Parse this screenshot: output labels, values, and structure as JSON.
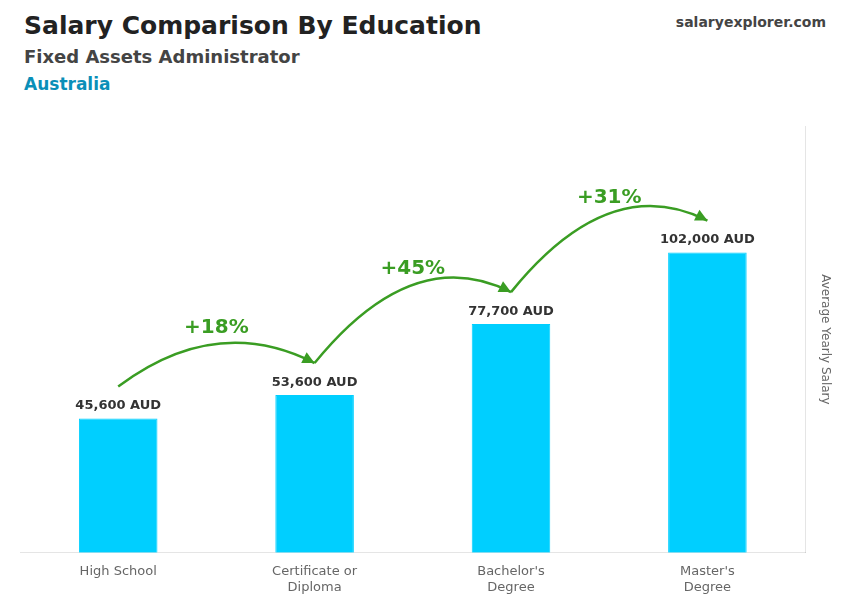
{
  "chart_data": {
    "type": "bar",
    "title": "Salary Comparison By Education",
    "subtitle": "Fixed Assets Administrator",
    "y_label": "Average Yearly Salary",
    "categories": [
      "High School",
      "Certificate or\nDiploma",
      "Bachelor's\nDegree",
      "Master's\nDegree"
    ],
    "values": [
      45600,
      53600,
      77700,
      102000
    ],
    "value_labels": [
      "45,600 AUD",
      "53,600 AUD",
      "77,700 AUD",
      "102,000 AUD"
    ],
    "color": "#00cfff",
    "ylim": [
      0,
      145000
    ],
    "grid": false,
    "data_labels": true,
    "tick_labels": "x",
    "annotations": [
      {
        "text": "Australia"
      },
      {
        "text": "salaryexplorer.com"
      },
      {
        "text": "+18%",
        "from": "High School",
        "to": "Certificate or\nDiploma"
      },
      {
        "text": "+45%",
        "from": "Certificate or\nDiploma",
        "to": "Bachelor's\nDegree"
      },
      {
        "text": "+31%",
        "from": "Bachelor's\nDegree",
        "to": "Master's\nDegree"
      }
    ]
  }
}
